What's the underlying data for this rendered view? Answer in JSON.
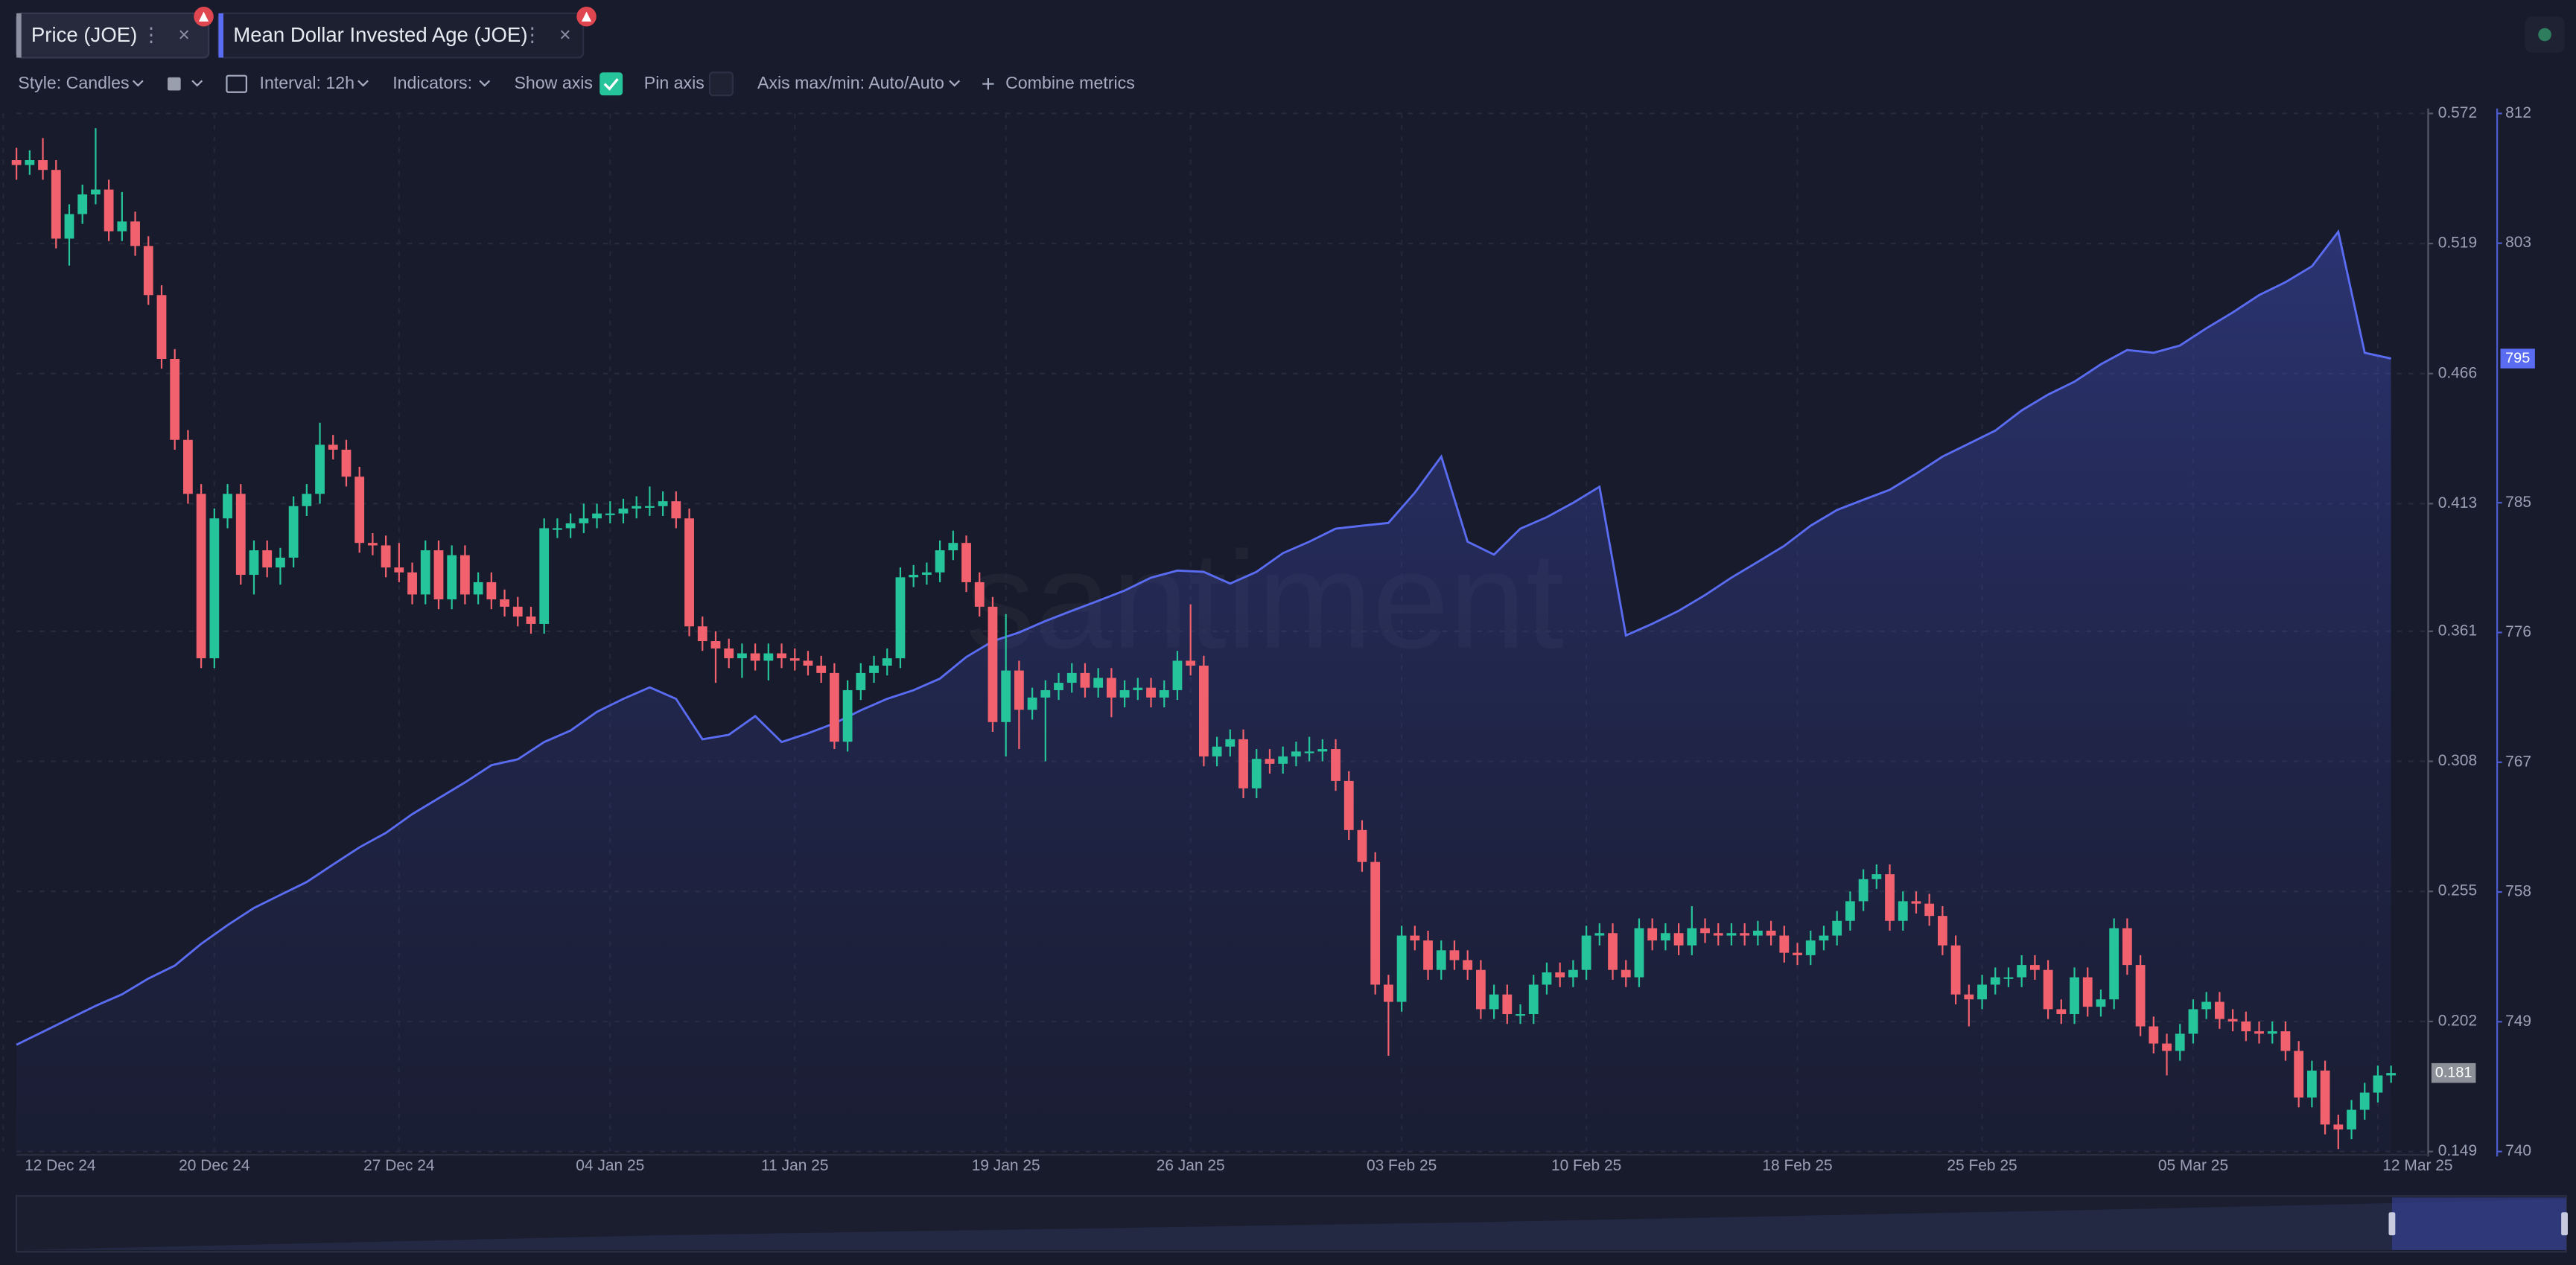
{
  "tabs": {
    "close_symbol": "×",
    "menu_symbol": "⋮"
  },
  "toolbar": [
    "Style: Candles",
    "Interval: 12h",
    "Indicators:",
    "Show axis",
    "Pin axis",
    "Axis max/min: Auto/Auto",
    "Combine metrics"
  ],
  "chart_data": {
    "type": "candlestick",
    "watermark": "santiment",
    "ylim": [
      0.149,
      0.572
    ],
    "yticks": [
      0.572,
      0.519,
      0.466,
      0.413,
      0.361,
      0.308,
      0.255,
      0.202,
      0.149
    ],
    "y2lim": [
      740,
      812
    ],
    "y2ticks": [
      812,
      803,
      785,
      776,
      767,
      758,
      749,
      740
    ],
    "grid": true,
    "xticks": [
      {
        "value": 0,
        "label": "12 Dec 24"
      },
      {
        "value": 8,
        "label": "20 Dec 24"
      },
      {
        "value": 15,
        "label": "27 Dec 24"
      },
      {
        "value": 23,
        "label": "04 Jan 25"
      },
      {
        "value": 30,
        "label": "11 Jan 25"
      },
      {
        "value": 38,
        "label": "19 Jan 25"
      },
      {
        "value": 45,
        "label": "26 Jan 25"
      },
      {
        "value": 53,
        "label": "03 Feb 25"
      },
      {
        "value": 60,
        "label": "10 Feb 25"
      },
      {
        "value": 68,
        "label": "18 Feb 25"
      },
      {
        "value": 75,
        "label": "25 Feb 25"
      },
      {
        "value": 83,
        "label": "05 Mar 25"
      },
      {
        "value": 90,
        "label": "12 Mar 25"
      }
    ],
    "series": [
      {
        "name": "Price (JOE)",
        "type": "candlestick",
        "axis": "y",
        "color_up": "#26c49a",
        "color_down": "#f2616e",
        "open": [
          0.553,
          0.551,
          0.553,
          0.549,
          0.521,
          0.531,
          0.539,
          0.541,
          0.524,
          0.528,
          0.518,
          0.498,
          0.472,
          0.439,
          0.417,
          0.35,
          0.407,
          0.417,
          0.384,
          0.394,
          0.387,
          0.391,
          0.412,
          0.417,
          0.437,
          0.435,
          0.424,
          0.397,
          0.396,
          0.387,
          0.385,
          0.376,
          0.394,
          0.374,
          0.392,
          0.376,
          0.381,
          0.374,
          0.371,
          0.367,
          0.364,
          0.403,
          0.403,
          0.405,
          0.407,
          0.409,
          0.409,
          0.411,
          0.412,
          0.412,
          0.414,
          0.407,
          0.363,
          0.357,
          0.354,
          0.35,
          0.352,
          0.349,
          0.352,
          0.35,
          0.349,
          0.347,
          0.344,
          0.316,
          0.337,
          0.344,
          0.347,
          0.35,
          0.383,
          0.384,
          0.385,
          0.394,
          0.397,
          0.381,
          0.371,
          0.324,
          0.345,
          0.329,
          0.334,
          0.337,
          0.34,
          0.344,
          0.338,
          0.342,
          0.334,
          0.337,
          0.338,
          0.334,
          0.337,
          0.349,
          0.347,
          0.31,
          0.314,
          0.317,
          0.297,
          0.309,
          0.307,
          0.31,
          0.312,
          0.312,
          0.313,
          0.3,
          0.28,
          0.267,
          0.217,
          0.21,
          0.237,
          0.235,
          0.223,
          0.231,
          0.227,
          0.223,
          0.207,
          0.213,
          0.205,
          0.205,
          0.217,
          0.222,
          0.22,
          0.223,
          0.237,
          0.238,
          0.223,
          0.22,
          0.24,
          0.235,
          0.238,
          0.233,
          0.24,
          0.238,
          0.237,
          0.238,
          0.237,
          0.239,
          0.237,
          0.23,
          0.229,
          0.235,
          0.237,
          0.243,
          0.251,
          0.26,
          0.262,
          0.243,
          0.251,
          0.25,
          0.245,
          0.233,
          0.213,
          0.211,
          0.217,
          0.22,
          0.22,
          0.225,
          0.223,
          0.207,
          0.205,
          0.22,
          0.208,
          0.211,
          0.24,
          0.225,
          0.2,
          0.193,
          0.19,
          0.197,
          0.207,
          0.21,
          0.203,
          0.202,
          0.198,
          0.197,
          0.198,
          0.19,
          0.171,
          0.182,
          0.16,
          0.158,
          0.166,
          0.173,
          0.18
        ],
        "high": [
          0.558,
          0.557,
          0.562,
          0.553,
          0.535,
          0.543,
          0.566,
          0.545,
          0.54,
          0.532,
          0.522,
          0.502,
          0.476,
          0.443,
          0.421,
          0.411,
          0.421,
          0.421,
          0.398,
          0.398,
          0.395,
          0.416,
          0.421,
          0.446,
          0.441,
          0.439,
          0.428,
          0.401,
          0.4,
          0.397,
          0.389,
          0.398,
          0.398,
          0.396,
          0.396,
          0.385,
          0.385,
          0.378,
          0.375,
          0.371,
          0.407,
          0.407,
          0.409,
          0.413,
          0.413,
          0.414,
          0.415,
          0.416,
          0.42,
          0.418,
          0.418,
          0.411,
          0.367,
          0.361,
          0.358,
          0.356,
          0.356,
          0.356,
          0.356,
          0.354,
          0.353,
          0.351,
          0.348,
          0.341,
          0.348,
          0.351,
          0.354,
          0.387,
          0.388,
          0.389,
          0.398,
          0.402,
          0.4,
          0.385,
          0.375,
          0.368,
          0.349,
          0.338,
          0.341,
          0.344,
          0.348,
          0.348,
          0.346,
          0.346,
          0.341,
          0.342,
          0.342,
          0.341,
          0.353,
          0.372,
          0.351,
          0.318,
          0.321,
          0.321,
          0.313,
          0.313,
          0.314,
          0.316,
          0.318,
          0.317,
          0.317,
          0.304,
          0.284,
          0.271,
          0.221,
          0.241,
          0.241,
          0.239,
          0.235,
          0.235,
          0.231,
          0.227,
          0.217,
          0.217,
          0.209,
          0.221,
          0.226,
          0.226,
          0.227,
          0.241,
          0.242,
          0.242,
          0.227,
          0.244,
          0.244,
          0.242,
          0.242,
          0.249,
          0.244,
          0.242,
          0.242,
          0.242,
          0.243,
          0.243,
          0.241,
          0.234,
          0.239,
          0.241,
          0.247,
          0.255,
          0.264,
          0.266,
          0.266,
          0.255,
          0.255,
          0.254,
          0.249,
          0.237,
          0.217,
          0.221,
          0.224,
          0.224,
          0.229,
          0.229,
          0.227,
          0.211,
          0.224,
          0.224,
          0.215,
          0.244,
          0.244,
          0.229,
          0.204,
          0.197,
          0.201,
          0.211,
          0.214,
          0.214,
          0.207,
          0.206,
          0.202,
          0.202,
          0.202,
          0.194,
          0.186,
          0.186,
          0.164,
          0.17,
          0.177,
          0.184,
          0.184
        ],
        "low": [
          0.545,
          0.547,
          0.545,
          0.517,
          0.51,
          0.527,
          0.535,
          0.52,
          0.52,
          0.514,
          0.494,
          0.468,
          0.435,
          0.413,
          0.346,
          0.346,
          0.403,
          0.38,
          0.376,
          0.383,
          0.38,
          0.387,
          0.408,
          0.413,
          0.431,
          0.42,
          0.393,
          0.392,
          0.383,
          0.381,
          0.372,
          0.372,
          0.37,
          0.37,
          0.372,
          0.372,
          0.37,
          0.367,
          0.363,
          0.36,
          0.36,
          0.399,
          0.399,
          0.401,
          0.403,
          0.405,
          0.405,
          0.407,
          0.408,
          0.408,
          0.403,
          0.359,
          0.353,
          0.34,
          0.346,
          0.342,
          0.345,
          0.341,
          0.346,
          0.345,
          0.343,
          0.34,
          0.313,
          0.312,
          0.333,
          0.34,
          0.343,
          0.346,
          0.379,
          0.38,
          0.381,
          0.39,
          0.377,
          0.367,
          0.32,
          0.31,
          0.313,
          0.325,
          0.308,
          0.333,
          0.336,
          0.334,
          0.334,
          0.326,
          0.33,
          0.333,
          0.33,
          0.33,
          0.333,
          0.343,
          0.306,
          0.306,
          0.31,
          0.293,
          0.293,
          0.303,
          0.303,
          0.306,
          0.308,
          0.308,
          0.296,
          0.276,
          0.263,
          0.213,
          0.188,
          0.206,
          0.231,
          0.219,
          0.219,
          0.223,
          0.219,
          0.203,
          0.203,
          0.201,
          0.201,
          0.201,
          0.213,
          0.216,
          0.216,
          0.219,
          0.233,
          0.219,
          0.216,
          0.216,
          0.231,
          0.231,
          0.229,
          0.229,
          0.234,
          0.233,
          0.233,
          0.233,
          0.233,
          0.233,
          0.226,
          0.225,
          0.225,
          0.231,
          0.233,
          0.239,
          0.247,
          0.256,
          0.239,
          0.239,
          0.246,
          0.241,
          0.229,
          0.209,
          0.2,
          0.207,
          0.213,
          0.216,
          0.216,
          0.219,
          0.203,
          0.201,
          0.201,
          0.204,
          0.204,
          0.207,
          0.221,
          0.196,
          0.189,
          0.18,
          0.186,
          0.193,
          0.203,
          0.199,
          0.198,
          0.194,
          0.193,
          0.193,
          0.186,
          0.167,
          0.167,
          0.156,
          0.15,
          0.154,
          0.162,
          0.169,
          0.177
        ],
        "close": [
          0.551,
          0.553,
          0.549,
          0.521,
          0.531,
          0.539,
          0.541,
          0.524,
          0.528,
          0.518,
          0.498,
          0.472,
          0.439,
          0.417,
          0.35,
          0.407,
          0.417,
          0.384,
          0.394,
          0.387,
          0.391,
          0.412,
          0.417,
          0.437,
          0.435,
          0.424,
          0.397,
          0.396,
          0.387,
          0.385,
          0.376,
          0.394,
          0.374,
          0.392,
          0.376,
          0.381,
          0.374,
          0.371,
          0.367,
          0.364,
          0.403,
          0.403,
          0.405,
          0.407,
          0.409,
          0.409,
          0.411,
          0.412,
          0.412,
          0.414,
          0.407,
          0.363,
          0.357,
          0.354,
          0.35,
          0.352,
          0.349,
          0.352,
          0.35,
          0.349,
          0.347,
          0.344,
          0.316,
          0.337,
          0.344,
          0.347,
          0.35,
          0.383,
          0.384,
          0.385,
          0.394,
          0.397,
          0.381,
          0.371,
          0.324,
          0.345,
          0.329,
          0.334,
          0.337,
          0.34,
          0.344,
          0.338,
          0.342,
          0.334,
          0.337,
          0.338,
          0.334,
          0.337,
          0.349,
          0.347,
          0.31,
          0.314,
          0.317,
          0.297,
          0.309,
          0.307,
          0.31,
          0.312,
          0.312,
          0.313,
          0.3,
          0.28,
          0.267,
          0.217,
          0.21,
          0.237,
          0.235,
          0.223,
          0.231,
          0.227,
          0.223,
          0.207,
          0.213,
          0.205,
          0.205,
          0.217,
          0.222,
          0.22,
          0.223,
          0.237,
          0.238,
          0.223,
          0.22,
          0.24,
          0.235,
          0.238,
          0.233,
          0.24,
          0.238,
          0.237,
          0.238,
          0.237,
          0.239,
          0.237,
          0.23,
          0.229,
          0.235,
          0.237,
          0.243,
          0.251,
          0.26,
          0.262,
          0.243,
          0.251,
          0.25,
          0.245,
          0.233,
          0.213,
          0.211,
          0.217,
          0.22,
          0.22,
          0.225,
          0.223,
          0.207,
          0.205,
          0.22,
          0.208,
          0.211,
          0.24,
          0.225,
          0.2,
          0.193,
          0.19,
          0.197,
          0.207,
          0.21,
          0.203,
          0.202,
          0.198,
          0.197,
          0.198,
          0.19,
          0.171,
          0.182,
          0.16,
          0.158,
          0.166,
          0.173,
          0.18,
          0.181
        ]
      },
      {
        "name": "Mean Dollar Invested Age (JOE)",
        "type": "area",
        "axis": "y2",
        "color": "#5a6cf2",
        "values": [
          747.4,
          748.3,
          749.2,
          750.1,
          750.9,
          752.0,
          752.9,
          754.4,
          755.7,
          756.9,
          757.8,
          758.7,
          759.9,
          761.1,
          762.1,
          763.4,
          764.5,
          765.6,
          766.8,
          767.2,
          768.4,
          769.2,
          770.5,
          771.4,
          772.2,
          771.4,
          768.6,
          768.9,
          770.2,
          768.4,
          769.0,
          769.7,
          770.6,
          771.4,
          772.0,
          772.8,
          774.3,
          775.4,
          776.0,
          776.8,
          777.5,
          778.2,
          778.9,
          779.8,
          780.3,
          780.2,
          779.4,
          780.2,
          781.5,
          782.3,
          783.2,
          783.4,
          783.6,
          785.7,
          788.2,
          782.3,
          781.4,
          783.2,
          784.0,
          785.0,
          786.1,
          775.8,
          776.6,
          777.5,
          778.6,
          779.8,
          780.9,
          782.0,
          783.4,
          784.5,
          785.2,
          785.9,
          787.0,
          788.2,
          789.1,
          790.0,
          791.4,
          792.5,
          793.4,
          794.6,
          795.6,
          795.4,
          795.9,
          797.1,
          798.2,
          799.4,
          800.3,
          801.4,
          803.8,
          795.4,
          795
        ]
      }
    ]
  }
}
